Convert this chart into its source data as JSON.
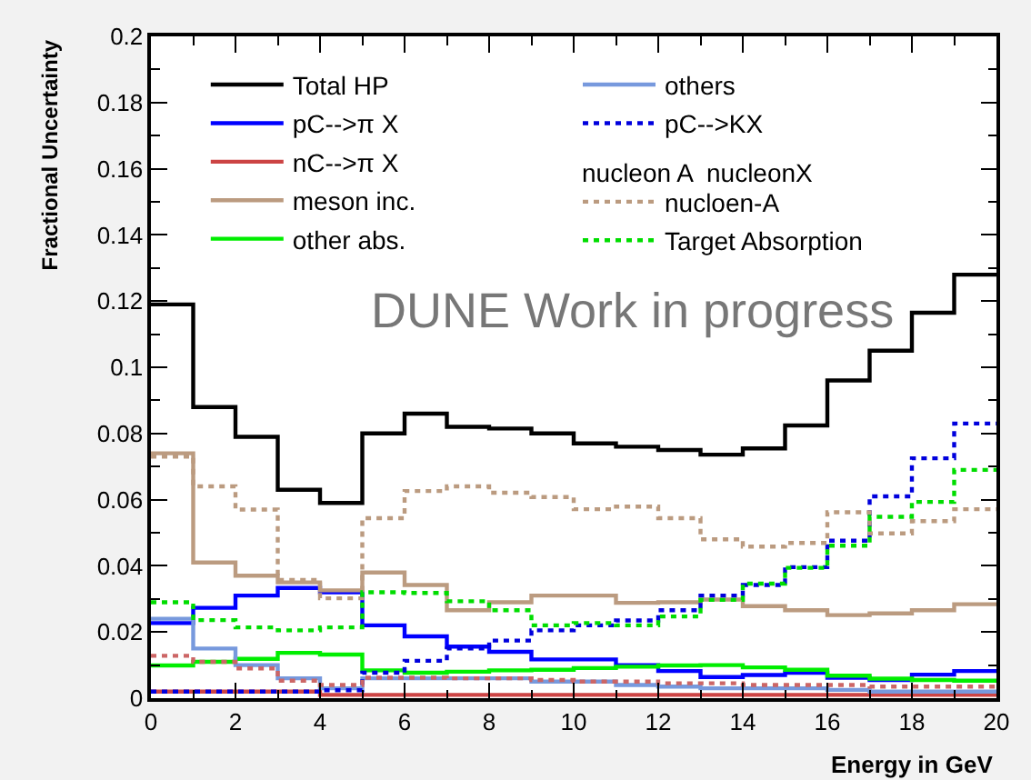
{
  "chart_data": {
    "type": "histogram",
    "xlabel": "Energy in GeV",
    "ylabel": "Fractional Uncertainty",
    "bins": [
      0,
      1,
      2,
      3,
      4,
      5,
      6,
      7,
      8,
      9,
      10,
      11,
      12,
      13,
      14,
      15,
      16,
      17,
      18,
      19,
      20
    ],
    "xlim": [
      0,
      20
    ],
    "xticks": [
      0,
      2,
      4,
      6,
      8,
      10,
      12,
      14,
      16,
      18,
      20
    ],
    "ylim": [
      0,
      0.2
    ],
    "yticks": [
      0,
      0.02,
      0.04,
      0.06,
      0.08,
      0.1,
      0.12,
      0.14,
      0.16,
      0.18,
      0.2
    ],
    "legend": "top left",
    "marker": "none",
    "annotations": [
      "DUNE Work in progress",
      "nucleon A  nucleonX"
    ],
    "series": [
      {
        "name": "Total HP",
        "color": "#000000",
        "line_style": "solid",
        "values": [
          0.119,
          0.088,
          0.079,
          0.063,
          0.059,
          0.08,
          0.086,
          0.082,
          0.0815,
          0.08,
          0.077,
          0.076,
          0.075,
          0.0736,
          0.0755,
          0.0824,
          0.096,
          0.105,
          0.1165,
          0.128
        ]
      },
      {
        "name": "pC-->π X",
        "color": "#0000ff",
        "line_style": "solid",
        "values": [
          0.0227,
          0.0273,
          0.031,
          0.0333,
          0.032,
          0.022,
          0.0187,
          0.0156,
          0.014,
          0.0117,
          0.0117,
          0.01,
          0.0082,
          0.0064,
          0.007,
          0.0077,
          0.0062,
          0.0055,
          0.0071,
          0.0082
        ]
      },
      {
        "name": "nC-->π X",
        "color": "#cc4444",
        "line_style": "solid",
        "values": [
          0.002,
          0.002,
          0.002,
          0.002,
          0.001,
          0.001,
          0.001,
          0.001,
          0.001,
          0.001,
          0.001,
          0.001,
          0.001,
          0.001,
          0.001,
          0.001,
          0.001,
          0.001,
          0.001,
          0.001
        ]
      },
      {
        "name": "meson inc.",
        "color": "#bb9b80",
        "line_style": "solid",
        "values": [
          0.074,
          0.041,
          0.037,
          0.035,
          0.0326,
          0.038,
          0.0342,
          0.0266,
          0.029,
          0.031,
          0.031,
          0.0288,
          0.029,
          0.0298,
          0.0278,
          0.0266,
          0.0251,
          0.0256,
          0.0266,
          0.0284
        ]
      },
      {
        "name": "other abs.",
        "color": "#00ee00",
        "line_style": "solid",
        "values": [
          0.0099,
          0.011,
          0.0119,
          0.0137,
          0.0132,
          0.0084,
          0.0077,
          0.008,
          0.0084,
          0.0086,
          0.0091,
          0.0095,
          0.0099,
          0.01,
          0.0093,
          0.0086,
          0.0068,
          0.0059,
          0.0055,
          0.0053
        ]
      },
      {
        "name": "others",
        "color": "#7799dd",
        "line_style": "solid",
        "values": [
          0.024,
          0.015,
          0.01,
          0.006,
          0.003,
          0.006,
          0.006,
          0.006,
          0.006,
          0.005,
          0.005,
          0.004,
          0.0035,
          0.003,
          0.003,
          0.003,
          0.0025,
          0.002,
          0.002,
          0.002
        ]
      },
      {
        "name": "pC-->KX",
        "color": "#0000dd",
        "line_style": "dotted",
        "values": [
          0.002,
          0.002,
          0.002,
          0.002,
          0.0024,
          0.0077,
          0.0113,
          0.015,
          0.0174,
          0.0205,
          0.022,
          0.0235,
          0.0266,
          0.031,
          0.0342,
          0.0396,
          0.0476,
          0.061,
          0.0725,
          0.083
        ]
      },
      {
        "name": "nucloen-A",
        "color": "#bb9b80",
        "line_style": "dotted",
        "values": [
          0.073,
          0.064,
          0.057,
          0.0357,
          0.0302,
          0.0544,
          0.0626,
          0.064,
          0.0621,
          0.0608,
          0.0571,
          0.0579,
          0.0544,
          0.048,
          0.0458,
          0.0469,
          0.0562,
          0.0498,
          0.0535,
          0.0571
        ]
      },
      {
        "name": "Target Absorption",
        "color": "#00dd00",
        "line_style": "dotted",
        "values": [
          0.029,
          0.0236,
          0.0214,
          0.0205,
          0.0214,
          0.032,
          0.0318,
          0.0293,
          0.0266,
          0.022,
          0.0227,
          0.022,
          0.0247,
          0.0297,
          0.0346,
          0.0394,
          0.0461,
          0.0548,
          0.0593,
          0.069
        ]
      },
      {
        "color": "#cc6666",
        "line_style": "dotted",
        "values": [
          0.0128,
          0.011,
          0.009,
          0.0053,
          0.004,
          0.0062,
          0.0062,
          0.006,
          0.006,
          0.0055,
          0.005,
          0.005,
          0.0045,
          0.0045,
          0.004,
          0.004,
          0.004,
          0.0035,
          0.0035,
          0.0035
        ]
      }
    ]
  }
}
